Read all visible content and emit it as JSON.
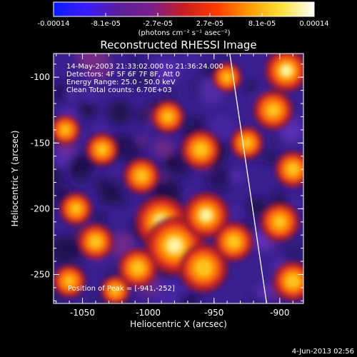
{
  "colorbar": {
    "tick_labels": [
      "-0.00014",
      "-8.1e-05",
      "-2.7e-05",
      "2.7e-05",
      "8.1e-05",
      "0.00014"
    ],
    "unit_label": "(photons cm⁻² s⁻¹ asec⁻²)",
    "colors": [
      "#0b1bff",
      "#3b1cff",
      "#5b1f9b",
      "#7a1f8c",
      "#c81d23",
      "#ff3a00",
      "#ff9a00",
      "#ffe23a",
      "#ffffff"
    ]
  },
  "title": "Reconstructed RHESSI Image",
  "info": {
    "time": "14-May-2003 21:33:02.000 to 21:36:24.000",
    "detectors": "Detectors: 4F 5F 6F 7F 8F, Att 0",
    "energy": "Energy Range: 25.0 - 50.0 keV",
    "clean": "Clean    Total counts: 6.70E+03"
  },
  "peak": "Position of Peak = [-941,-252]",
  "axes": {
    "xlabel": "Heliocentric X (arcsec)",
    "ylabel": "Heliocentric Y (arcsec)",
    "xlim": [
      -1072,
      -882
    ],
    "ylim": [
      -272,
      -82
    ],
    "xticks": [
      "-1050",
      "-1000",
      "-950",
      "-900"
    ],
    "yticks": [
      "-100",
      "-150",
      "-200",
      "-250"
    ]
  },
  "footer_date": "4-Jun-2013 02:56",
  "image_blobs": [
    {
      "x": -990,
      "y": -210,
      "r": 16,
      "w": 1.0
    },
    {
      "x": -980,
      "y": -228,
      "r": 18,
      "w": 1.0
    },
    {
      "x": -956,
      "y": -205,
      "r": 14,
      "w": 0.95
    },
    {
      "x": -958,
      "y": -245,
      "r": 15,
      "w": 0.9
    },
    {
      "x": -935,
      "y": -225,
      "r": 12,
      "w": 0.85
    },
    {
      "x": -1008,
      "y": -245,
      "r": 12,
      "w": 0.85
    },
    {
      "x": -1040,
      "y": -225,
      "r": 11,
      "w": 0.85
    },
    {
      "x": -1055,
      "y": -200,
      "r": 10,
      "w": 0.75
    },
    {
      "x": -1035,
      "y": -155,
      "r": 10,
      "w": 0.8
    },
    {
      "x": -1005,
      "y": -175,
      "r": 11,
      "w": 0.8
    },
    {
      "x": -960,
      "y": -155,
      "r": 12,
      "w": 0.85
    },
    {
      "x": -985,
      "y": -130,
      "r": 10,
      "w": 0.75
    },
    {
      "x": -895,
      "y": -95,
      "r": 13,
      "w": 0.95
    },
    {
      "x": -905,
      "y": -125,
      "r": 12,
      "w": 0.8
    },
    {
      "x": -925,
      "y": -150,
      "r": 10,
      "w": 0.75
    },
    {
      "x": -890,
      "y": -170,
      "r": 11,
      "w": 0.85
    },
    {
      "x": -900,
      "y": -210,
      "r": 12,
      "w": 0.8
    },
    {
      "x": -890,
      "y": -255,
      "r": 12,
      "w": 0.9
    },
    {
      "x": -1063,
      "y": -140,
      "r": 9,
      "w": 0.7
    },
    {
      "x": -1060,
      "y": -255,
      "r": 10,
      "w": 0.7
    },
    {
      "x": -1025,
      "y": -262,
      "r": 9,
      "w": 0.7
    },
    {
      "x": -940,
      "y": -100,
      "r": 9,
      "w": 0.7
    }
  ],
  "limb_line": [
    [
      -938,
      -82
    ],
    [
      -910,
      -272
    ]
  ]
}
